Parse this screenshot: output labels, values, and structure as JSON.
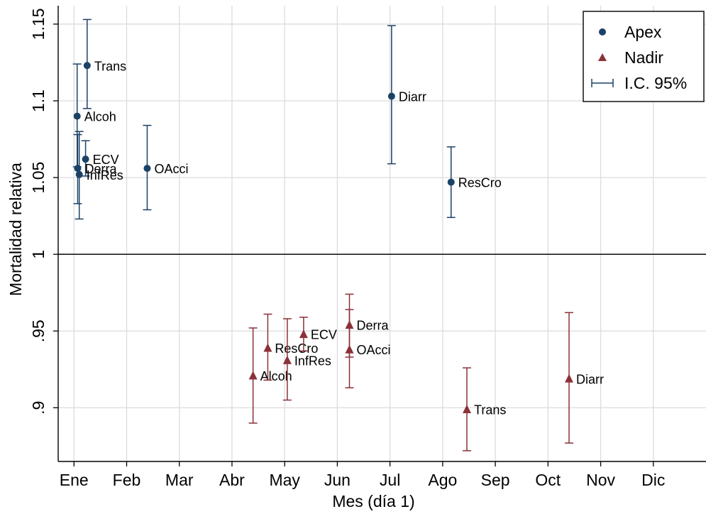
{
  "chart_data": {
    "type": "scatter",
    "xlabel": "Mes (día 1)",
    "ylabel": "Mortalidad relativa",
    "x_ticks": [
      {
        "value": 1,
        "label": "Ene"
      },
      {
        "value": 2,
        "label": "Feb"
      },
      {
        "value": 3,
        "label": "Mar"
      },
      {
        "value": 4,
        "label": "Abr"
      },
      {
        "value": 5,
        "label": "May"
      },
      {
        "value": 6,
        "label": "Jun"
      },
      {
        "value": 7,
        "label": "Jul"
      },
      {
        "value": 8,
        "label": "Ago"
      },
      {
        "value": 9,
        "label": "Sep"
      },
      {
        "value": 10,
        "label": "Oct"
      },
      {
        "value": 11,
        "label": "Nov"
      },
      {
        "value": 12,
        "label": "Dic"
      }
    ],
    "y_ticks": [
      {
        "value": 0.9,
        "label": ".9"
      },
      {
        "value": 0.95,
        "label": ".95"
      },
      {
        "value": 1,
        "label": "1"
      },
      {
        "value": 1.05,
        "label": "1.05"
      },
      {
        "value": 1.1,
        "label": "1.1"
      },
      {
        "value": 1.15,
        "label": "1.15"
      }
    ],
    "xlim": [
      0.7,
      13.0
    ],
    "ylim": [
      0.865,
      1.162
    ],
    "reference_line_y": 1,
    "grid": true,
    "legend": {
      "placement": "top-right",
      "entries": [
        {
          "label": "Apex",
          "marker": "circle",
          "color": "#1b4266"
        },
        {
          "label": "Nadir",
          "marker": "triangle",
          "color": "#8b3138"
        },
        {
          "label": "I.C. 95%",
          "marker": "errorbar",
          "color": "#1b4266"
        }
      ]
    },
    "series": [
      {
        "name": "Apex",
        "marker": "circle",
        "color": "#1b4266",
        "points": [
          {
            "label": "Trans",
            "x": 1.25,
            "y": 1.123,
            "lo": 1.095,
            "hi": 1.153
          },
          {
            "label": "Alcoh",
            "x": 1.06,
            "y": 1.09,
            "lo": 1.057,
            "hi": 1.124
          },
          {
            "label": "ECV",
            "x": 1.22,
            "y": 1.062,
            "lo": 1.051,
            "hi": 1.074
          },
          {
            "label": "Derra",
            "x": 1.07,
            "y": 1.056,
            "lo": 1.033,
            "hi": 1.078
          },
          {
            "label": "InfRes",
            "x": 1.1,
            "y": 1.052,
            "lo": 1.023,
            "hi": 1.08
          },
          {
            "label": "OAcci",
            "x": 2.39,
            "y": 1.056,
            "lo": 1.029,
            "hi": 1.084
          },
          {
            "label": "Diarr",
            "x": 7.03,
            "y": 1.103,
            "lo": 1.059,
            "hi": 1.149
          },
          {
            "label": "ResCro",
            "x": 8.16,
            "y": 1.047,
            "lo": 1.024,
            "hi": 1.07
          }
        ]
      },
      {
        "name": "Nadir",
        "marker": "triangle",
        "color": "#8b3138",
        "points": [
          {
            "label": "Alcoh",
            "x": 4.4,
            "y": 0.921,
            "lo": 0.89,
            "hi": 0.952
          },
          {
            "label": "ResCro",
            "x": 4.68,
            "y": 0.939,
            "lo": 0.918,
            "hi": 0.961
          },
          {
            "label": "InfRes",
            "x": 5.05,
            "y": 0.931,
            "lo": 0.905,
            "hi": 0.958
          },
          {
            "label": "ECV",
            "x": 5.36,
            "y": 0.948,
            "lo": 0.937,
            "hi": 0.959
          },
          {
            "label": "Derra",
            "x": 6.23,
            "y": 0.954,
            "lo": 0.933,
            "hi": 0.974
          },
          {
            "label": "OAcci",
            "x": 6.23,
            "y": 0.938,
            "lo": 0.913,
            "hi": 0.964
          },
          {
            "label": "Trans",
            "x": 8.46,
            "y": 0.899,
            "lo": 0.872,
            "hi": 0.926
          },
          {
            "label": "Diarr",
            "x": 10.4,
            "y": 0.919,
            "lo": 0.877,
            "hi": 0.962
          }
        ]
      }
    ]
  }
}
